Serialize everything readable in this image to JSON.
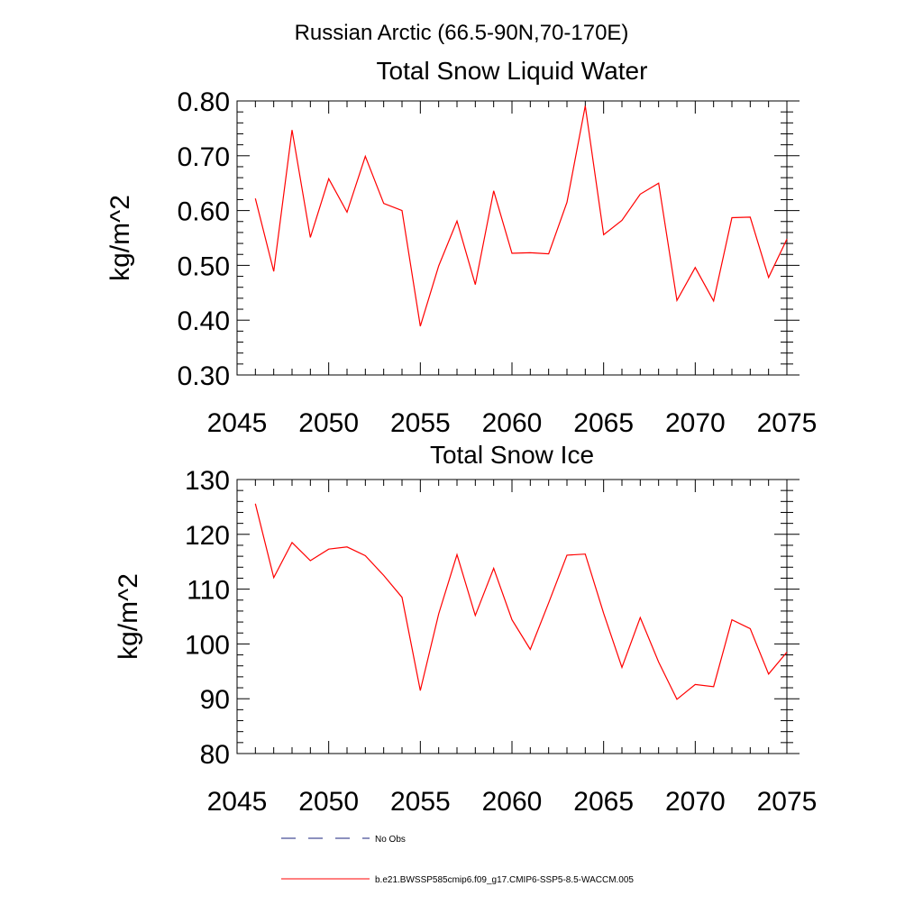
{
  "page_title": "Russian Arctic (66.5-90N,70-170E)",
  "colors": {
    "model_line": "#ff0000",
    "obs_line": "#1a237e",
    "axis": "#000000"
  },
  "legend": [
    {
      "label": "No Obs",
      "style": "dashed"
    },
    {
      "label": "b.e21.BWSSP585cmip6.f09_g17.CMIP6-SSP5-8.5-WACCM.005",
      "style": "solid"
    }
  ],
  "chart_data": [
    {
      "type": "line",
      "title": "Total Snow Liquid Water",
      "xlabel": "",
      "ylabel": "kg/m^2",
      "xlim": [
        2045,
        2075
      ],
      "ylim": [
        0.3,
        0.8
      ],
      "x_ticks": [
        2045,
        2050,
        2055,
        2060,
        2065,
        2070,
        2075
      ],
      "x_tick_labels": [
        "2045",
        "2050",
        "2055",
        "2060",
        "2065",
        "2070",
        "2075"
      ],
      "y_ticks": [
        0.3,
        0.4,
        0.5,
        0.6,
        0.7,
        0.8
      ],
      "y_tick_labels": [
        "0.30",
        "0.40",
        "0.50",
        "0.60",
        "0.70",
        "0.80"
      ],
      "grid": false,
      "x": [
        2046,
        2047,
        2048,
        2049,
        2050,
        2051,
        2052,
        2053,
        2054,
        2055,
        2056,
        2057,
        2058,
        2059,
        2060,
        2061,
        2062,
        2063,
        2064,
        2065,
        2066,
        2067,
        2068,
        2069,
        2070,
        2071,
        2072,
        2073,
        2074,
        2075
      ],
      "series": [
        {
          "name": "b.e21.BWSSP585cmip6.f09_g17.CMIP6-SSP5-8.5-WACCM.005",
          "values": [
            0.622,
            0.489,
            0.747,
            0.551,
            0.658,
            0.597,
            0.699,
            0.613,
            0.6,
            0.389,
            0.499,
            0.581,
            0.465,
            0.636,
            0.522,
            0.523,
            0.521,
            0.615,
            0.791,
            0.556,
            0.582,
            0.63,
            0.65,
            0.436,
            0.496,
            0.435,
            0.587,
            0.588,
            0.478,
            0.548
          ]
        }
      ]
    },
    {
      "type": "line",
      "title": "Total Snow Ice",
      "xlabel": "",
      "ylabel": "kg/m^2",
      "xlim": [
        2045,
        2075
      ],
      "ylim": [
        80,
        130
      ],
      "x_ticks": [
        2045,
        2050,
        2055,
        2060,
        2065,
        2070,
        2075
      ],
      "x_tick_labels": [
        "2045",
        "2050",
        "2055",
        "2060",
        "2065",
        "2070",
        "2075"
      ],
      "y_ticks": [
        80,
        90,
        100,
        110,
        120,
        130
      ],
      "y_tick_labels": [
        "80",
        "90",
        "100",
        "110",
        "120",
        "130"
      ],
      "grid": false,
      "x": [
        2046,
        2047,
        2048,
        2049,
        2050,
        2051,
        2052,
        2053,
        2054,
        2055,
        2056,
        2057,
        2058,
        2059,
        2060,
        2061,
        2062,
        2063,
        2064,
        2065,
        2066,
        2067,
        2068,
        2069,
        2070,
        2071,
        2072,
        2073,
        2074,
        2075
      ],
      "series": [
        {
          "name": "b.e21.BWSSP585cmip6.f09_g17.CMIP6-SSP5-8.5-WACCM.005",
          "values": [
            125.6,
            112.1,
            118.5,
            115.2,
            117.3,
            117.7,
            116.1,
            112.5,
            108.5,
            91.5,
            105.5,
            116.3,
            105.2,
            113.8,
            104.4,
            99.0,
            107.5,
            116.2,
            116.4,
            105.6,
            95.7,
            104.8,
            96.7,
            89.9,
            92.6,
            92.2,
            104.4,
            102.8,
            94.5,
            98.5
          ]
        }
      ]
    }
  ]
}
